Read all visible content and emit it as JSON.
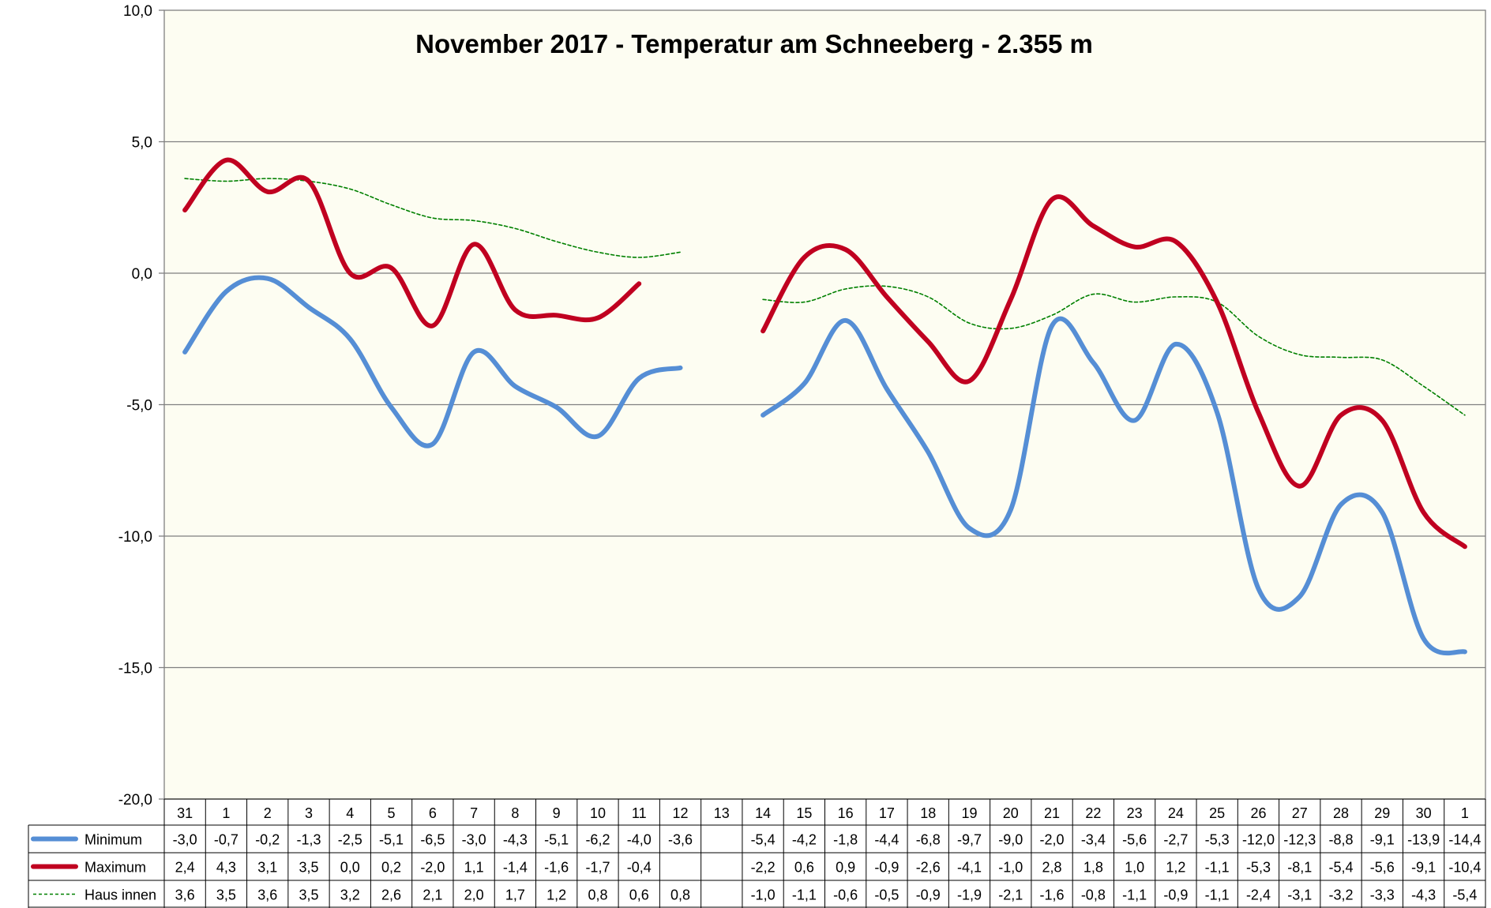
{
  "chart_data": {
    "type": "line",
    "title": "November 2017 - Temperatur am Schneeberg - 2.355 m",
    "ylim": [
      -20,
      10
    ],
    "y_ticks": [
      "10,0",
      "5,0",
      "0,0",
      "-5,0",
      "-10,0",
      "-15,0",
      "-20,0"
    ],
    "y_tick_values": [
      10,
      5,
      0,
      -5,
      -10,
      -15,
      -20
    ],
    "grid": true,
    "legend": "bottom-left (data table)",
    "categories": [
      "31",
      "1",
      "2",
      "3",
      "4",
      "5",
      "6",
      "7",
      "8",
      "9",
      "10",
      "11",
      "12",
      "13",
      "14",
      "15",
      "16",
      "17",
      "18",
      "19",
      "20",
      "21",
      "22",
      "23",
      "24",
      "25",
      "26",
      "27",
      "28",
      "29",
      "30",
      "1"
    ],
    "series": [
      {
        "name": "Minimum",
        "color": "#558ED5",
        "style": "solid",
        "values": [
          -3.0,
          -0.7,
          -0.2,
          -1.3,
          -2.5,
          -5.1,
          -6.5,
          -3.0,
          -4.3,
          -5.1,
          -6.2,
          -4.0,
          -3.6,
          null,
          -5.4,
          -4.2,
          -1.8,
          -4.4,
          -6.8,
          -9.7,
          -9.0,
          -2.0,
          -3.4,
          -5.6,
          -2.7,
          -5.3,
          -12.0,
          -12.3,
          -8.8,
          -9.1,
          -13.9,
          -14.4
        ],
        "labels": [
          "-3,0",
          "-0,7",
          "-0,2",
          "-1,3",
          "-2,5",
          "-5,1",
          "-6,5",
          "-3,0",
          "-4,3",
          "-5,1",
          "-6,2",
          "-4,0",
          "-3,6",
          "",
          "-5,4",
          "-4,2",
          "-1,8",
          "-4,4",
          "-6,8",
          "-9,7",
          "-9,0",
          "-2,0",
          "-3,4",
          "-5,6",
          "-2,7",
          "-5,3",
          "-12,0",
          "-12,3",
          "-8,8",
          "-9,1",
          "-13,9",
          "-14,4"
        ]
      },
      {
        "name": "Maximum",
        "color": "#C00020",
        "style": "solid",
        "values": [
          2.4,
          4.3,
          3.1,
          3.5,
          0.0,
          0.2,
          -2.0,
          1.1,
          -1.4,
          -1.6,
          -1.7,
          -0.4,
          null,
          null,
          -2.2,
          0.6,
          0.9,
          -0.9,
          -2.6,
          -4.1,
          -1.0,
          2.8,
          1.8,
          1.0,
          1.2,
          -1.1,
          -5.3,
          -8.1,
          -5.4,
          -5.6,
          -9.1,
          -10.4
        ],
        "labels": [
          "2,4",
          "4,3",
          "3,1",
          "3,5",
          "0,0",
          "0,2",
          "-2,0",
          "1,1",
          "-1,4",
          "-1,6",
          "-1,7",
          "-0,4",
          "",
          "",
          "-2,2",
          "0,6",
          "0,9",
          "-0,9",
          "-2,6",
          "-4,1",
          "-1,0",
          "2,8",
          "1,8",
          "1,0",
          "1,2",
          "-1,1",
          "-5,3",
          "-8,1",
          "-5,4",
          "-5,6",
          "-9,1",
          "-10,4"
        ]
      },
      {
        "name": "Haus innen",
        "color": "#008000",
        "style": "dashed",
        "values": [
          3.6,
          3.5,
          3.6,
          3.5,
          3.2,
          2.6,
          2.1,
          2.0,
          1.7,
          1.2,
          0.8,
          0.6,
          0.8,
          null,
          -1.0,
          -1.1,
          -0.6,
          -0.5,
          -0.9,
          -1.9,
          -2.1,
          -1.6,
          -0.8,
          -1.1,
          -0.9,
          -1.1,
          -2.4,
          -3.1,
          -3.2,
          -3.3,
          -4.3,
          -5.4
        ],
        "labels": [
          "3,6",
          "3,5",
          "3,6",
          "3,5",
          "3,2",
          "2,6",
          "2,1",
          "2,0",
          "1,7",
          "1,2",
          "0,8",
          "0,6",
          "0,8",
          "",
          "-1,0",
          "-1,1",
          "-0,6",
          "-0,5",
          "-0,9",
          "-1,9",
          "-2,1",
          "-1,6",
          "-0,8",
          "-1,1",
          "-0,9",
          "-1,1",
          "-2,4",
          "-3,1",
          "-3,2",
          "-3,3",
          "-4,3",
          "-5,4"
        ]
      }
    ]
  }
}
